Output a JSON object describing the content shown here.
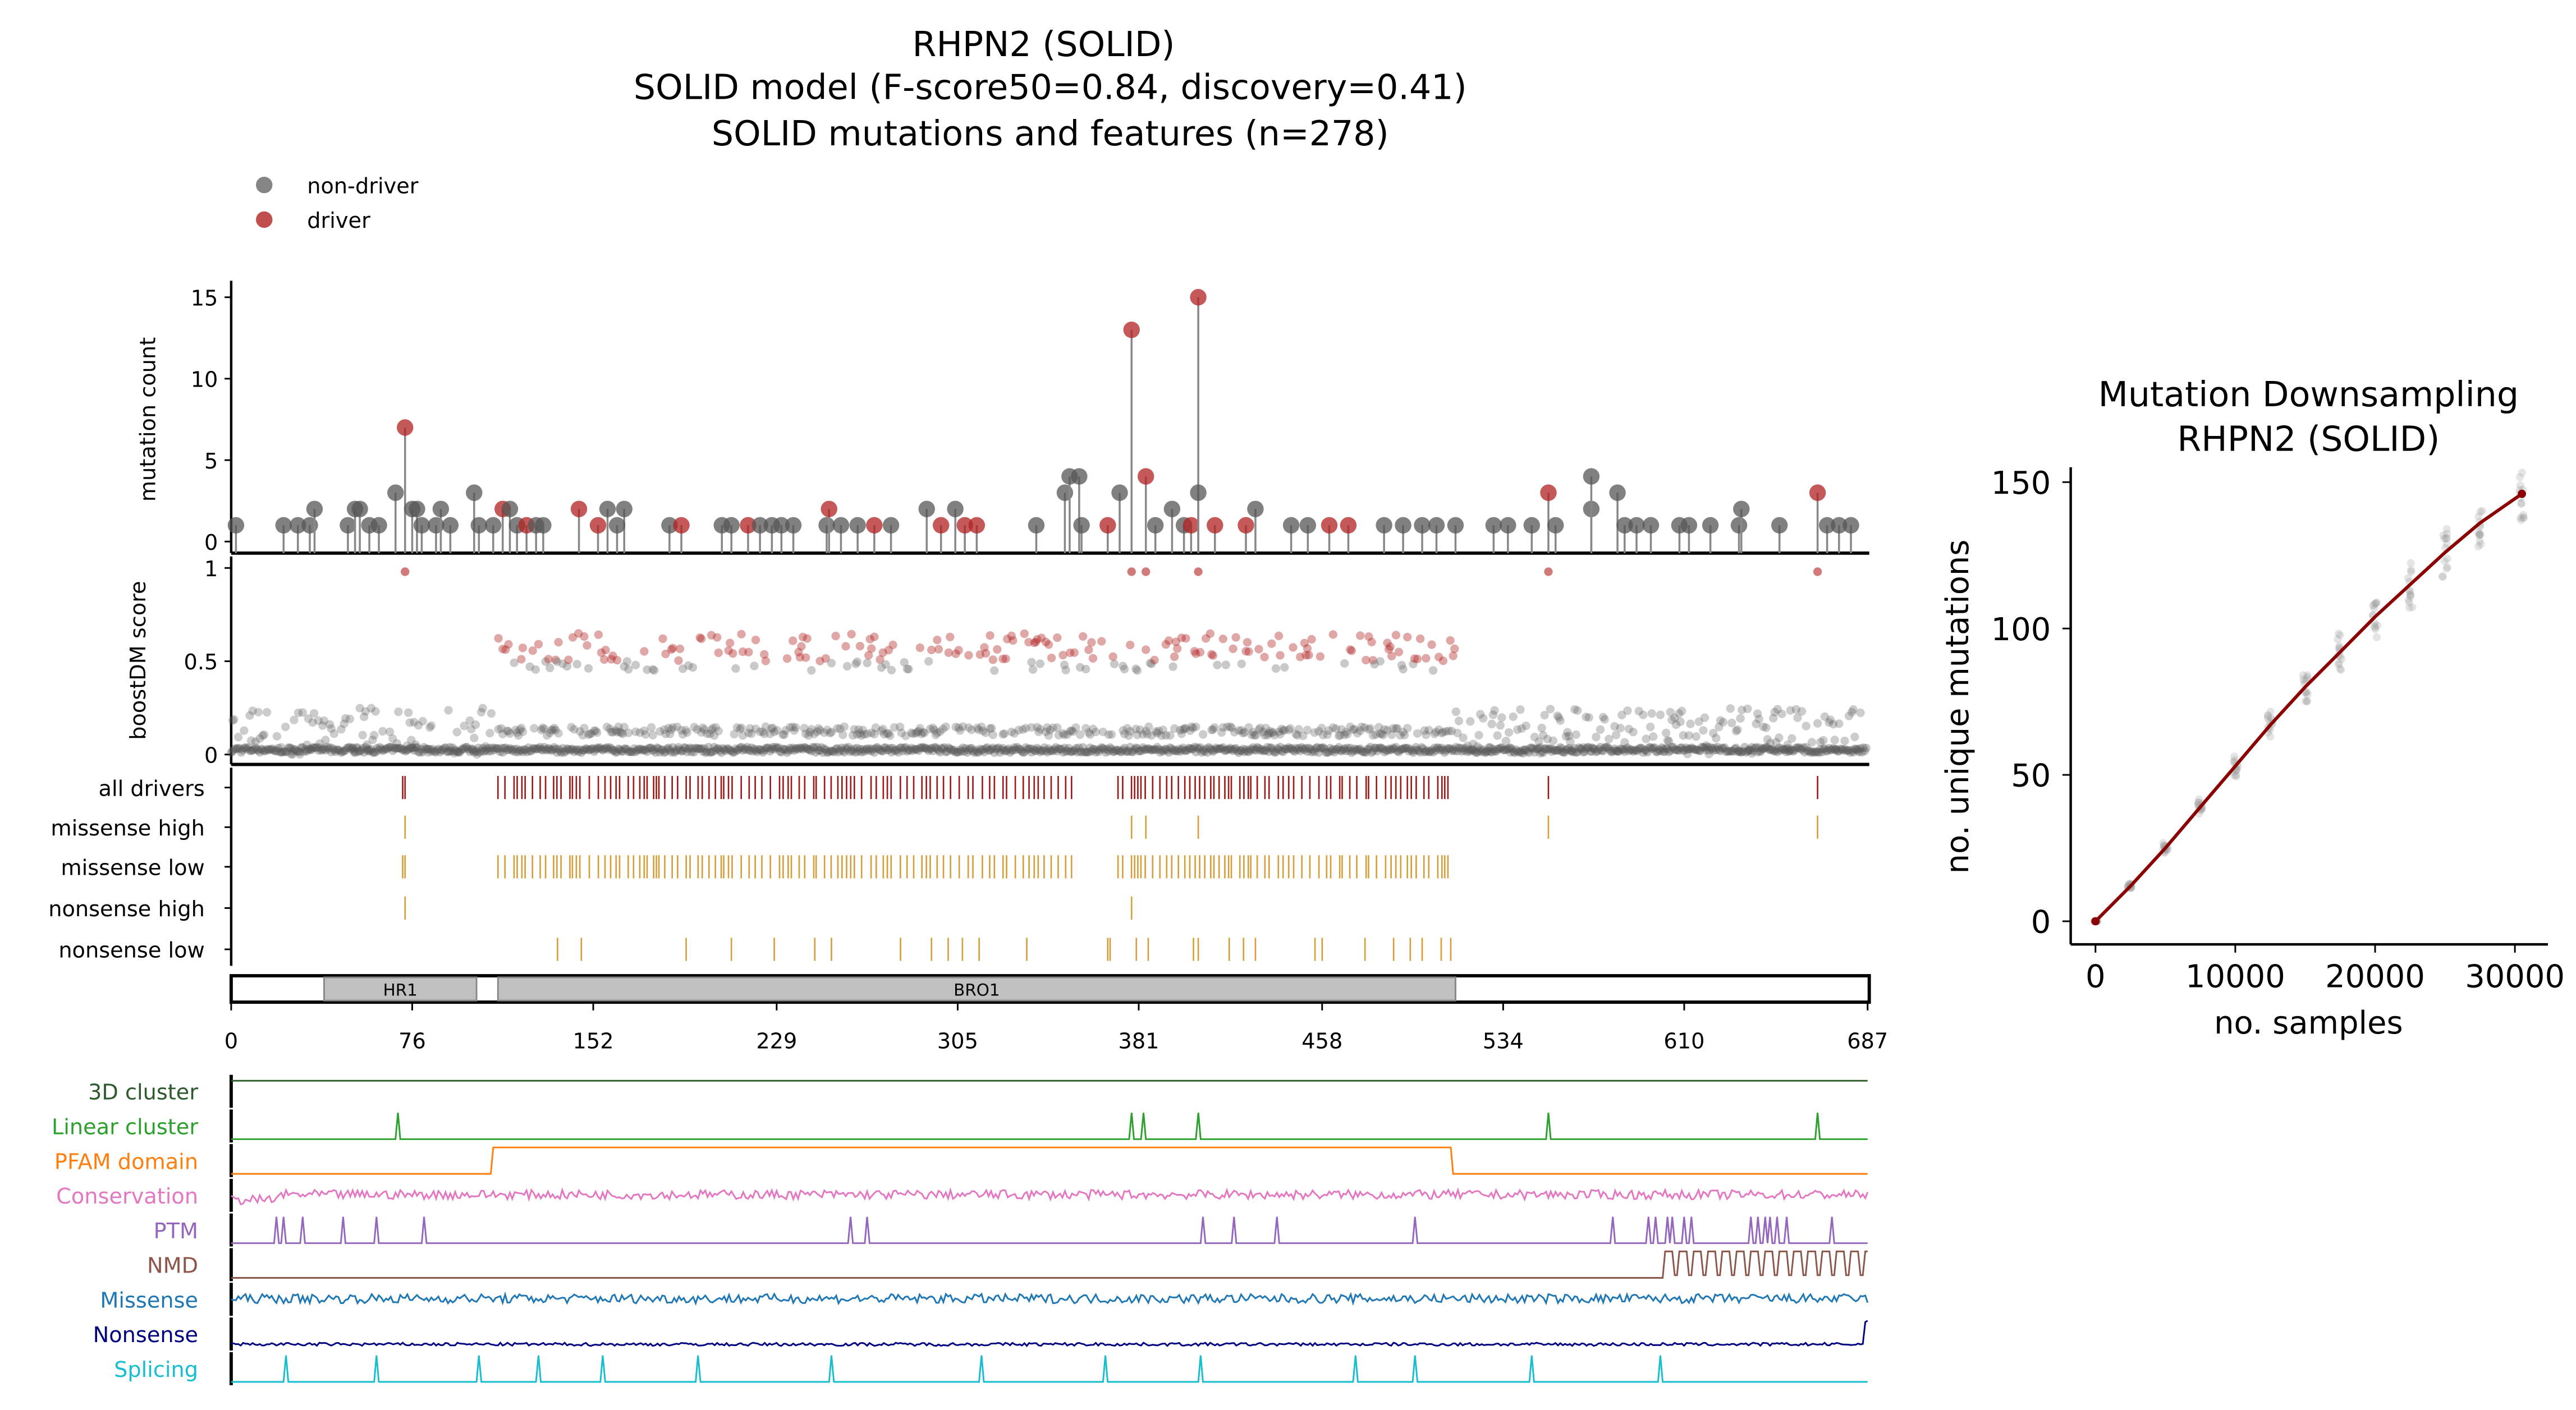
{
  "title": [
    "RHPN2 (SOLID)",
    "SOLID model (F-score50=0.84, discovery=0.41)",
    "SOLID mutations and features (n=278)"
  ],
  "legend": [
    {
      "label": "non-driver",
      "color": "#666666"
    },
    {
      "label": "driver",
      "color": "#b22222"
    }
  ],
  "chart_data": [
    {
      "type": "scatter",
      "name": "lollipop",
      "ylabel": "mutation count",
      "ylim": [
        0,
        15.5
      ],
      "yticks": [
        "0",
        "5",
        "10",
        "15"
      ],
      "xlim": [
        0,
        687
      ],
      "points": [
        [
          2,
          1,
          0
        ],
        [
          22,
          1,
          0
        ],
        [
          28,
          1,
          0
        ],
        [
          33,
          1,
          0
        ],
        [
          35,
          2,
          0
        ],
        [
          49,
          1,
          0
        ],
        [
          52,
          2,
          0
        ],
        [
          54,
          2,
          0
        ],
        [
          58,
          1,
          0
        ],
        [
          62,
          1,
          0
        ],
        [
          69,
          3,
          0
        ],
        [
          73,
          7,
          1
        ],
        [
          76,
          2,
          0
        ],
        [
          78,
          2,
          0
        ],
        [
          80,
          1,
          0
        ],
        [
          86,
          1,
          0
        ],
        [
          88,
          2,
          0
        ],
        [
          92,
          1,
          0
        ],
        [
          102,
          3,
          0
        ],
        [
          104,
          1,
          0
        ],
        [
          110,
          1,
          0
        ],
        [
          114,
          2,
          1
        ],
        [
          117,
          2,
          0
        ],
        [
          120,
          1,
          0
        ],
        [
          124,
          1,
          1
        ],
        [
          128,
          1,
          0
        ],
        [
          131,
          1,
          0
        ],
        [
          146,
          2,
          1
        ],
        [
          154,
          1,
          1
        ],
        [
          158,
          2,
          0
        ],
        [
          165,
          2,
          0
        ],
        [
          162,
          1,
          0
        ],
        [
          184,
          1,
          0
        ],
        [
          189,
          1,
          1
        ],
        [
          206,
          1,
          0
        ],
        [
          210,
          1,
          0
        ],
        [
          217,
          1,
          1
        ],
        [
          222,
          1,
          0
        ],
        [
          227,
          1,
          0
        ],
        [
          231,
          1,
          0
        ],
        [
          236,
          1,
          0
        ],
        [
          250,
          1,
          0
        ],
        [
          251,
          2,
          1
        ],
        [
          256,
          1,
          0
        ],
        [
          263,
          1,
          0
        ],
        [
          270,
          1,
          1
        ],
        [
          277,
          1,
          0
        ],
        [
          292,
          2,
          0
        ],
        [
          298,
          1,
          1
        ],
        [
          304,
          2,
          0
        ],
        [
          308,
          1,
          1
        ],
        [
          313,
          1,
          1
        ],
        [
          338,
          1,
          0
        ],
        [
          350,
          3,
          0
        ],
        [
          352,
          4,
          0
        ],
        [
          356,
          4,
          0
        ],
        [
          357,
          1,
          0
        ],
        [
          368,
          1,
          1
        ],
        [
          373,
          3,
          0
        ],
        [
          378,
          13,
          1
        ],
        [
          384,
          4,
          1
        ],
        [
          388,
          1,
          0
        ],
        [
          395,
          2,
          0
        ],
        [
          400,
          1,
          0
        ],
        [
          403,
          1,
          1
        ],
        [
          406,
          15,
          1
        ],
        [
          406,
          3,
          0
        ],
        [
          413,
          1,
          1
        ],
        [
          426,
          1,
          1
        ],
        [
          430,
          2,
          0
        ],
        [
          445,
          1,
          0
        ],
        [
          452,
          1,
          0
        ],
        [
          461,
          1,
          1
        ],
        [
          469,
          1,
          1
        ],
        [
          484,
          1,
          0
        ],
        [
          492,
          1,
          0
        ],
        [
          500,
          1,
          0
        ],
        [
          506,
          1,
          0
        ],
        [
          514,
          1,
          0
        ],
        [
          530,
          1,
          0
        ],
        [
          536,
          1,
          0
        ],
        [
          546,
          1,
          0
        ],
        [
          553,
          3,
          1
        ],
        [
          556,
          1,
          0
        ],
        [
          571,
          2,
          0
        ],
        [
          571,
          4,
          0
        ],
        [
          582,
          3,
          0
        ],
        [
          585,
          1,
          0
        ],
        [
          590,
          1,
          0
        ],
        [
          596,
          1,
          0
        ],
        [
          608,
          1,
          0
        ],
        [
          612,
          1,
          0
        ],
        [
          621,
          1,
          0
        ],
        [
          633,
          1,
          0
        ],
        [
          634,
          2,
          0
        ],
        [
          650,
          1,
          0
        ],
        [
          666,
          3,
          1
        ],
        [
          670,
          1,
          0
        ],
        [
          675,
          1,
          0
        ],
        [
          680,
          1,
          0
        ]
      ]
    },
    {
      "type": "scatter",
      "name": "boostDM",
      "ylabel": "boostDM score",
      "ylim": [
        0,
        1
      ],
      "yticks": [
        "0",
        "0.5",
        "1"
      ],
      "driver_region": [
        112,
        514
      ],
      "high_score_positions": [
        73,
        378,
        384,
        406,
        553,
        666
      ]
    },
    {
      "type": "table",
      "name": "mutation-tracks",
      "rows": [
        {
          "label": "all drivers",
          "color": "#9b1b1b"
        },
        {
          "label": "missense high",
          "color": "#d4a03c",
          "positions": [
            73,
            378,
            384,
            406,
            553,
            666
          ]
        },
        {
          "label": "missense low",
          "color": "#d4a03c"
        },
        {
          "label": "nonsense high",
          "color": "#d4a03c",
          "positions": [
            73,
            378
          ]
        },
        {
          "label": "nonsense low",
          "color": "#d4a03c",
          "positions": [
            137,
            147,
            191,
            210,
            228,
            245,
            252,
            281,
            294,
            301,
            307,
            314,
            334,
            368,
            369,
            380,
            385,
            404,
            406,
            419,
            425,
            430,
            455,
            458,
            476,
            488,
            495,
            500,
            508,
            512
          ]
        }
      ],
      "domains": [
        {
          "label": "HR1",
          "start": 39,
          "end": 103
        },
        {
          "label": "BRO1",
          "start": 112,
          "end": 514
        }
      ],
      "xticks": [
        "0",
        "76",
        "152",
        "229",
        "305",
        "381",
        "458",
        "534",
        "610",
        "687"
      ]
    },
    {
      "type": "line",
      "name": "features",
      "tracks": [
        {
          "label": "3D cluster",
          "color": "#2d5a2d",
          "kind": "flat"
        },
        {
          "label": "Linear cluster",
          "color": "#2ca02c",
          "kind": "spikes",
          "positions": [
            70,
            378,
            383,
            406,
            553,
            666
          ]
        },
        {
          "label": "PFAM domain",
          "color": "#ff7f0e",
          "kind": "step",
          "range": [
            110,
            512
          ]
        },
        {
          "label": "Conservation",
          "color": "#e377c2",
          "kind": "noise"
        },
        {
          "label": "PTM",
          "color": "#9467bd",
          "kind": "spikes",
          "positions": [
            19,
            22,
            30,
            47,
            61,
            81,
            260,
            267,
            408,
            421,
            439,
            497,
            580,
            595,
            598,
            603,
            605,
            610,
            613,
            638,
            641,
            644,
            646,
            649,
            653,
            672
          ]
        },
        {
          "label": "NMD",
          "color": "#8c564b",
          "kind": "nmd",
          "start": 602
        },
        {
          "label": "Missense",
          "color": "#1f77b4",
          "kind": "noise"
        },
        {
          "label": "Nonsense",
          "color": "#000080",
          "kind": "noiselow"
        },
        {
          "label": "Splicing",
          "color": "#17becf",
          "kind": "spikes",
          "positions": [
            23,
            61,
            104,
            129,
            156,
            196,
            252,
            315,
            367,
            407,
            472,
            497,
            546,
            600
          ]
        }
      ]
    },
    {
      "type": "line",
      "name": "downsampling",
      "title": [
        "Mutation Downsampling",
        "RHPN2 (SOLID)"
      ],
      "xlabel": "no. samples",
      "ylabel": "no. unique mutations",
      "xlim": [
        0,
        30500
      ],
      "ylim": [
        0,
        150
      ],
      "xticks": [
        "0",
        "10000",
        "20000",
        "30000"
      ],
      "yticks": [
        "0",
        "50",
        "100",
        "150"
      ],
      "x": [
        0,
        2500,
        5000,
        7500,
        10000,
        12500,
        15000,
        17500,
        20000,
        22500,
        25000,
        27500,
        30500
      ],
      "y": [
        0,
        12,
        25,
        39,
        53,
        67,
        80,
        92,
        104,
        115,
        126,
        136,
        146
      ]
    }
  ]
}
